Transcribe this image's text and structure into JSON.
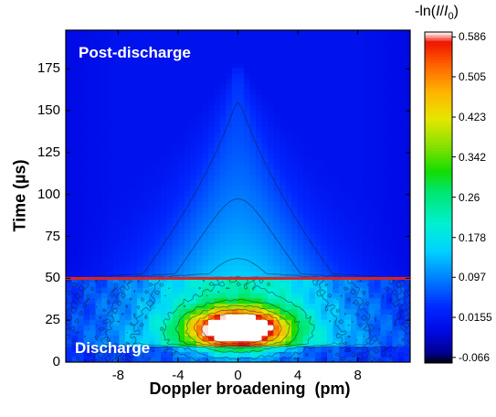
{
  "chart_data": {
    "type": "heatmap",
    "xlabel": "Doppler broadening  (pm)",
    "ylabel": "Time (µs)",
    "xlim": [
      -11.5,
      11.5
    ],
    "ylim": [
      0,
      198
    ],
    "xticks": [
      -8,
      -4,
      0,
      4,
      8
    ],
    "yticks": [
      0,
      25,
      50,
      75,
      100,
      125,
      150,
      175
    ],
    "xtick_labels": [
      "-8",
      "-4",
      "0",
      "4",
      "8"
    ],
    "ytick_labels": [
      "0",
      "25",
      "50",
      "75",
      "100",
      "125",
      "150",
      "175"
    ],
    "colorbar": {
      "title_prefix": "-ln(",
      "title_italic_1": "I",
      "title_slash": "/",
      "title_italic_2": "I",
      "title_sub": "0",
      "title_suffix": ")",
      "min": -0.066,
      "max": 0.586,
      "tick_values": [
        0.586,
        0.505,
        0.423,
        0.342,
        0.26,
        0.178,
        0.097,
        0.0155,
        -0.066
      ],
      "tick_labels": [
        "0.586",
        "0.505",
        "0.423",
        "0.342",
        "0.26",
        "0.178",
        "0.097",
        "0.0155",
        "-0.066"
      ]
    },
    "field": {
      "background": 0.012,
      "peak": {
        "x": 0,
        "y": 20,
        "value": 0.586
      },
      "discharge_end_time": 50,
      "post_discharge_apex": {
        "x": 0,
        "y": 150
      }
    },
    "boundary_line": {
      "y": 50,
      "color": "#dd2222"
    },
    "annotations": [
      {
        "text": "Post-discharge"
      },
      {
        "text": "Discharge"
      }
    ],
    "grid": false
  }
}
